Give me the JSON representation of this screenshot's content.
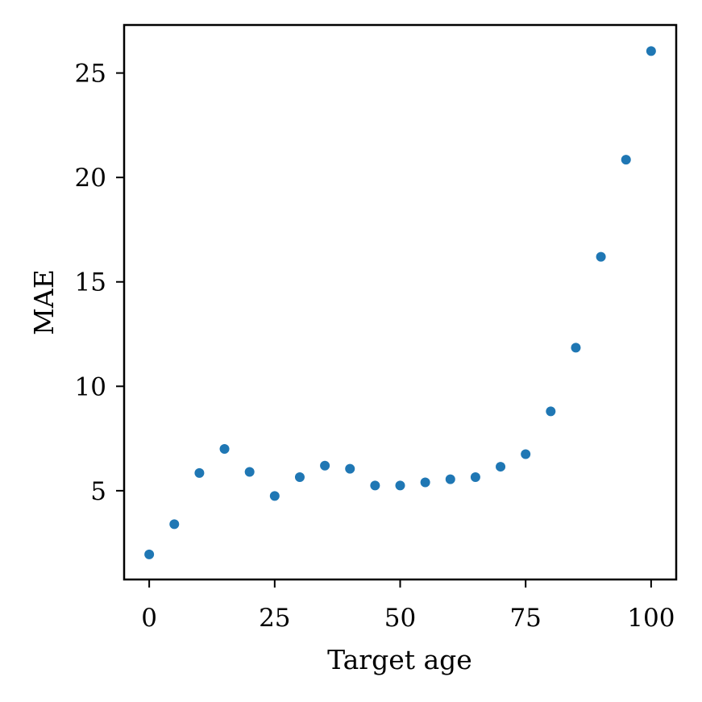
{
  "chart_data": {
    "type": "scatter",
    "title": "",
    "xlabel": "Target age",
    "ylabel": "MAE",
    "xlim": [
      -5,
      105
    ],
    "ylim": [
      0.75,
      27.3
    ],
    "grid": false,
    "x_ticks": [
      0,
      25,
      50,
      75,
      100
    ],
    "x_tick_labels": [
      "0",
      "25",
      "50",
      "75",
      "100"
    ],
    "y_ticks": [
      5,
      10,
      15,
      20,
      25
    ],
    "y_tick_labels": [
      "5",
      "10",
      "15",
      "20",
      "25"
    ],
    "series": [
      {
        "color": "#1f77b4",
        "x": [
          0,
          5,
          10,
          15,
          20,
          25,
          30,
          35,
          40,
          45,
          50,
          55,
          60,
          65,
          70,
          75,
          80,
          85,
          90,
          95,
          100
        ],
        "y": [
          1.95,
          3.4,
          5.85,
          7.0,
          5.9,
          4.75,
          5.65,
          6.2,
          6.05,
          5.25,
          5.25,
          5.4,
          5.55,
          5.65,
          6.15,
          6.75,
          8.8,
          11.85,
          16.2,
          20.85,
          26.05
        ]
      }
    ]
  }
}
